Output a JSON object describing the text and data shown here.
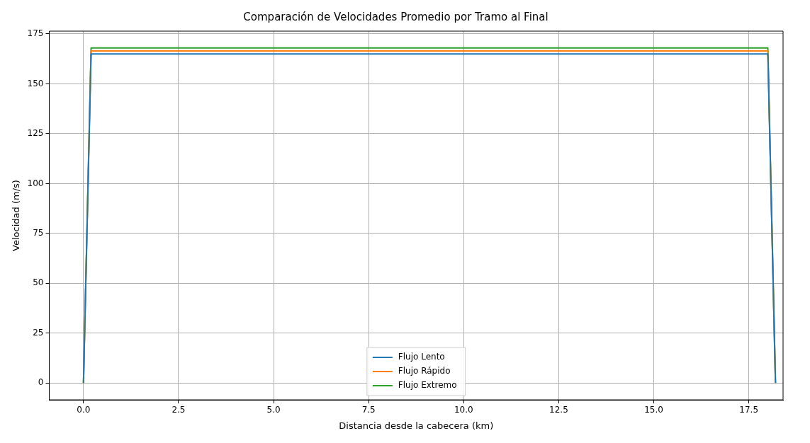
{
  "chart_data": {
    "type": "line",
    "title": "Comparación de Velocidades Promedio por Tramo al Final",
    "xlabel": "Distancia desde la cabecera (km)",
    "ylabel": "Velocidad (m/s)",
    "x": [
      0,
      0.2,
      18.0,
      18.2
    ],
    "series": [
      {
        "name": "Flujo Lento",
        "color": "#1f77b4",
        "values": [
          0,
          165,
          165,
          0
        ]
      },
      {
        "name": "Flujo Rápido",
        "color": "#ff7f0e",
        "values": [
          0,
          166.5,
          166.5,
          0
        ]
      },
      {
        "name": "Flujo Extremo",
        "color": "#2ca02c",
        "values": [
          0,
          168,
          168,
          0
        ]
      }
    ],
    "xlim": [
      -0.9,
      18.4
    ],
    "xticks": [
      {
        "value": 0,
        "label": "0.0"
      },
      {
        "value": 2.5,
        "label": "2.5"
      },
      {
        "value": 5,
        "label": "5.0"
      },
      {
        "value": 7.5,
        "label": "7.5"
      },
      {
        "value": 10,
        "label": "10.0"
      },
      {
        "value": 12.5,
        "label": "12.5"
      },
      {
        "value": 15,
        "label": "15.0"
      },
      {
        "value": 17.5,
        "label": "17.5"
      }
    ],
    "ylim": [
      -8.4,
      176.4
    ],
    "yticks": [
      0,
      25,
      50,
      75,
      100,
      125,
      150,
      175
    ],
    "grid": true,
    "legend": "bottom",
    "marker": "none",
    "line_style": "solid"
  }
}
